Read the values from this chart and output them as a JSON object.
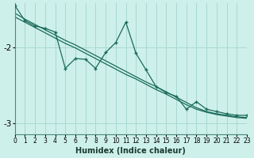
{
  "xlabel": "Humidex (Indice chaleur)",
  "bg_color": "#cef0ea",
  "grid_color": "#a8d8d0",
  "line_color": "#1a6b5a",
  "x_min": 0,
  "x_max": 23,
  "y_min": -3.15,
  "y_max": -1.42,
  "yticks": [
    -3,
    -2
  ],
  "xticks": [
    0,
    1,
    2,
    3,
    4,
    5,
    6,
    7,
    8,
    9,
    10,
    11,
    12,
    13,
    14,
    15,
    16,
    17,
    18,
    19,
    20,
    21,
    22,
    23
  ],
  "jagged_x": [
    0,
    1,
    2,
    3,
    4,
    5,
    6,
    7,
    8,
    9,
    10,
    11,
    12,
    13,
    14,
    15,
    16,
    17,
    18,
    19,
    20,
    21,
    22,
    23
  ],
  "jagged_y": [
    -1.45,
    -1.65,
    -1.72,
    -1.75,
    -1.8,
    -2.28,
    -2.15,
    -2.16,
    -2.28,
    -2.07,
    -1.94,
    -1.67,
    -2.08,
    -2.3,
    -2.52,
    -2.6,
    -2.65,
    -2.82,
    -2.72,
    -2.82,
    -2.85,
    -2.88,
    -2.9,
    -2.9
  ],
  "trend1_x": [
    0,
    1,
    2,
    3,
    4,
    5,
    6,
    7,
    8,
    9,
    10,
    11,
    12,
    13,
    14,
    15,
    16,
    17,
    18,
    19,
    20,
    21,
    22,
    23
  ],
  "trend1_y": [
    -1.55,
    -1.63,
    -1.7,
    -1.77,
    -1.84,
    -1.91,
    -1.97,
    -2.04,
    -2.11,
    -2.18,
    -2.25,
    -2.32,
    -2.39,
    -2.46,
    -2.52,
    -2.59,
    -2.66,
    -2.73,
    -2.8,
    -2.85,
    -2.88,
    -2.9,
    -2.92,
    -2.93
  ],
  "trend2_x": [
    0,
    1,
    2,
    3,
    4,
    5,
    6,
    7,
    8,
    9,
    10,
    11,
    12,
    13,
    14,
    15,
    16,
    17,
    18,
    19,
    20,
    21,
    22,
    23
  ],
  "trend2_y": [
    -1.6,
    -1.67,
    -1.74,
    -1.81,
    -1.88,
    -1.95,
    -2.01,
    -2.08,
    -2.15,
    -2.22,
    -2.29,
    -2.36,
    -2.42,
    -2.49,
    -2.56,
    -2.62,
    -2.69,
    -2.76,
    -2.82,
    -2.86,
    -2.89,
    -2.91,
    -2.93,
    -2.94
  ]
}
